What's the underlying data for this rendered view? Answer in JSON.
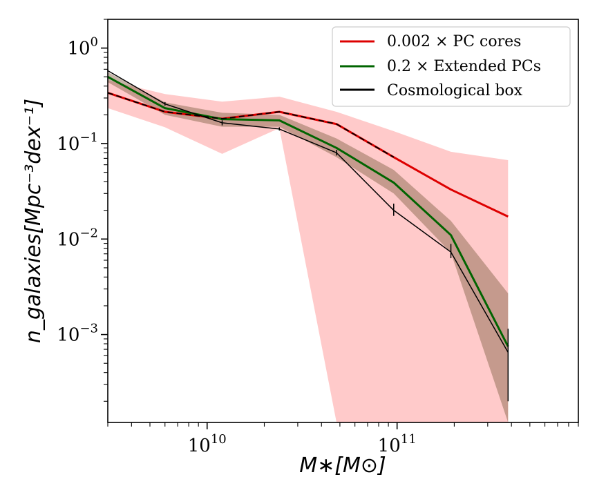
{
  "chart_data": {
    "type": "line",
    "x_scale": "log",
    "y_scale": "log",
    "xlim": [
      3000000000,
      900000000000
    ],
    "ylim": [
      0.00012,
      2.0
    ],
    "xlabel": "M∗[M⊙]",
    "ylabel": "n_galaxies[Mpc⁻³dex⁻¹]",
    "x_ticks": [
      {
        "value": 10000000000,
        "base": "10",
        "exp": "10"
      },
      {
        "value": 100000000000,
        "base": "10",
        "exp": "11"
      }
    ],
    "y_ticks": [
      {
        "value": 1,
        "base": "10",
        "exp": "0"
      },
      {
        "value": 0.1,
        "base": "10",
        "exp": "−1"
      },
      {
        "value": 0.01,
        "base": "10",
        "exp": "−2"
      },
      {
        "value": 0.001,
        "base": "10",
        "exp": "−3"
      }
    ],
    "legend": {
      "placement": "top-right",
      "entries": [
        {
          "label": "0.002 × PC cores",
          "color": "#dd0000"
        },
        {
          "label": "0.2 × Extended PCs",
          "color": "#006400"
        },
        {
          "label": "Cosmological box",
          "color": "#000000"
        }
      ]
    },
    "series": [
      {
        "name": "0.002 × PC cores",
        "color": "#dd0000",
        "band_color": "#ff9f9f",
        "x": [
          3000000000,
          6000000000,
          12000000000,
          24000000000,
          48000000000,
          96000000000,
          192000000000,
          384000000000
        ],
        "y": [
          0.34,
          0.215,
          0.182,
          0.215,
          0.16,
          0.072,
          0.033,
          0.0172
        ],
        "band_low": [
          0.235,
          0.148,
          0.078,
          0.145,
          0.00012,
          0.00012,
          0.00012,
          0.00012
        ],
        "band_high": [
          0.46,
          0.33,
          0.275,
          0.31,
          0.215,
          0.135,
          0.082,
          0.067
        ]
      },
      {
        "name": "0.2 × Extended PCs",
        "color": "#006400",
        "band_color": "#8b6a4f",
        "x": [
          3000000000,
          6000000000,
          12000000000,
          24000000000,
          48000000000,
          96000000000,
          192000000000,
          384000000000
        ],
        "y": [
          0.5,
          0.235,
          0.18,
          0.175,
          0.09,
          0.039,
          0.011,
          0.00075
        ],
        "band_low": [
          0.44,
          0.2,
          0.15,
          0.15,
          0.072,
          0.03,
          0.0072,
          0.00012
        ],
        "band_high": [
          0.56,
          0.27,
          0.21,
          0.2,
          0.113,
          0.053,
          0.0155,
          0.0027
        ]
      },
      {
        "name": "Cosmological box",
        "color": "#000000",
        "x": [
          3000000000,
          6000000000,
          12000000000,
          24000000000,
          48000000000,
          96000000000,
          192000000000,
          384000000000
        ],
        "y": [
          0.58,
          0.26,
          0.165,
          0.142,
          0.08,
          0.02,
          0.0073,
          0.00065
        ],
        "err_low": [
          0.58,
          0.25,
          0.155,
          0.137,
          0.075,
          0.0175,
          0.0063,
          0.0002
        ],
        "err_high": [
          0.6,
          0.272,
          0.175,
          0.148,
          0.086,
          0.0235,
          0.0089,
          0.00115
        ]
      },
      {
        "name": "PC cores (dashed overlay)",
        "color": "#000000",
        "dashed": true,
        "x": [
          3000000000,
          6000000000,
          12000000000,
          24000000000,
          48000000000,
          96000000000
        ],
        "y": [
          0.34,
          0.215,
          0.182,
          0.215,
          0.16,
          0.072
        ]
      }
    ]
  }
}
